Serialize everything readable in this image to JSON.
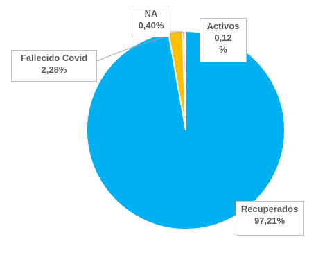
{
  "chart_data": {
    "type": "pie",
    "title": "",
    "slices": [
      {
        "name": "Recuperados",
        "value": 97.21,
        "value_label": "97,21%",
        "color": "#00b0f0"
      },
      {
        "name": "Fallecido Covid",
        "value": 2.28,
        "value_label": "2,28%",
        "color": "#ffc000"
      },
      {
        "name": "NA",
        "value": 0.4,
        "value_label": "0,40%",
        "color": "#ff33cc"
      },
      {
        "name": "Activos",
        "value": 0.12,
        "value_label": "0,12 %",
        "value_line1": "0,12",
        "value_line2": "%",
        "color": "#92d050"
      }
    ],
    "slice_border": "#ffffff",
    "leader_line_color": "#a6a6a6",
    "legend": "none"
  }
}
